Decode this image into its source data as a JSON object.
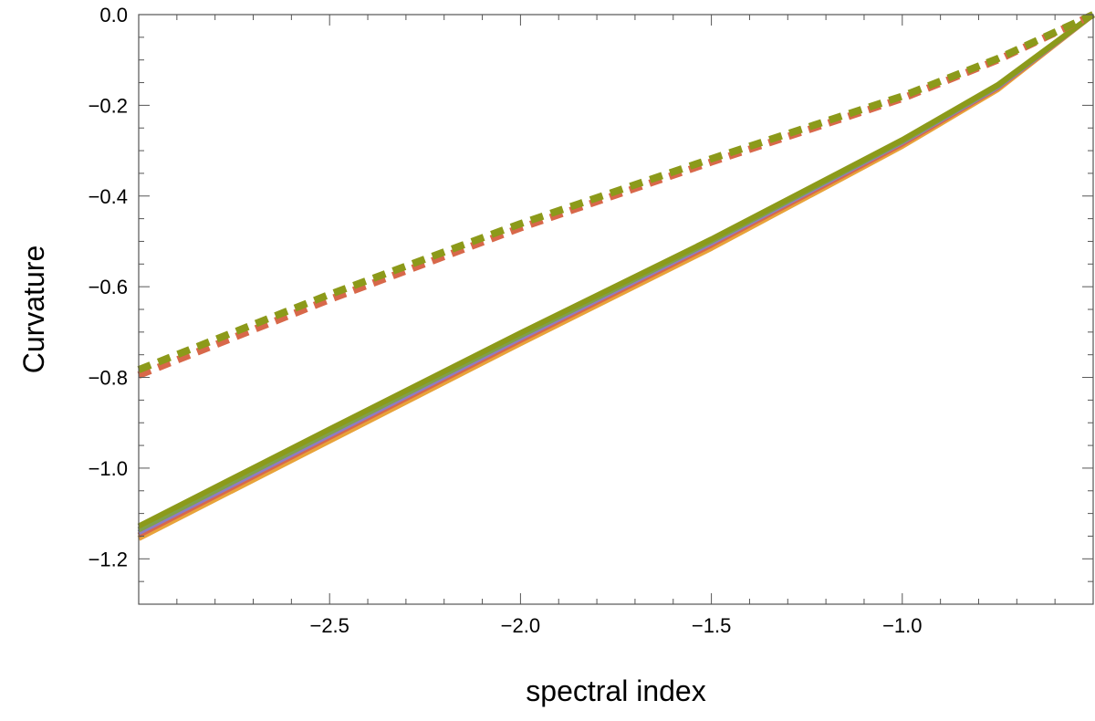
{
  "chart_data": {
    "type": "line",
    "xlabel": "spectral index",
    "ylabel": "Curvature",
    "xlim": [
      -3.0,
      -0.5
    ],
    "ylim": [
      -1.3,
      0.0
    ],
    "grid": false,
    "xticks": [
      {
        "value": -2.5,
        "label": "−2.5"
      },
      {
        "value": -2.0,
        "label": "−2.0"
      },
      {
        "value": -1.5,
        "label": "−1.5"
      },
      {
        "value": -1.0,
        "label": "−1.0"
      }
    ],
    "yticks": [
      {
        "value": 0.0,
        "label": "0.0"
      },
      {
        "value": -0.2,
        "label": "−0.2"
      },
      {
        "value": -0.4,
        "label": "−0.4"
      },
      {
        "value": -0.6,
        "label": "−0.6"
      },
      {
        "value": -0.8,
        "label": "−0.8"
      },
      {
        "value": -1.0,
        "label": "−1.0"
      },
      {
        "value": -1.2,
        "label": "−1.2"
      }
    ],
    "series": [
      {
        "style": "solid",
        "color": "#E8A33A",
        "x": [
          -3.0,
          -2.5,
          -2.0,
          -1.5,
          -1.0,
          -0.75,
          -0.5
        ],
        "y": [
          -1.155,
          -0.94,
          -0.725,
          -0.515,
          -0.29,
          -0.165,
          0.0
        ]
      },
      {
        "style": "solid",
        "color": "#D8684A",
        "x": [
          -3.0,
          -2.5,
          -2.0,
          -1.5,
          -1.0,
          -0.75,
          -0.5
        ],
        "y": [
          -1.148,
          -0.932,
          -0.718,
          -0.508,
          -0.285,
          -0.161,
          0.0
        ]
      },
      {
        "style": "solid",
        "color": "#8E7CC3",
        "x": [
          -3.0,
          -2.5,
          -2.0,
          -1.5,
          -1.0,
          -0.75,
          -0.5
        ],
        "y": [
          -1.142,
          -0.927,
          -0.713,
          -0.503,
          -0.281,
          -0.159,
          0.0
        ]
      },
      {
        "style": "solid",
        "color": "#7FA04A",
        "x": [
          -3.0,
          -2.5,
          -2.0,
          -1.5,
          -1.0,
          -0.75,
          -0.5
        ],
        "y": [
          -1.136,
          -0.921,
          -0.708,
          -0.499,
          -0.279,
          -0.157,
          0.0
        ]
      },
      {
        "style": "solid",
        "color": "#8C9A1A",
        "x": [
          -3.0,
          -2.5,
          -2.0,
          -1.5,
          -1.0,
          -0.75,
          -0.5
        ],
        "y": [
          -1.128,
          -0.914,
          -0.702,
          -0.495,
          -0.276,
          -0.155,
          0.0
        ]
      },
      {
        "style": "dashed",
        "color": "#D8684A",
        "x": [
          -3.0,
          -2.5,
          -2.0,
          -1.5,
          -1.0,
          -0.75,
          -0.5
        ],
        "y": [
          -0.795,
          -0.628,
          -0.47,
          -0.325,
          -0.185,
          -0.1,
          0.0
        ]
      },
      {
        "style": "dashed",
        "color": "#8C9A1A",
        "x": [
          -3.0,
          -2.5,
          -2.0,
          -1.5,
          -1.0,
          -0.75,
          -0.5
        ],
        "y": [
          -0.783,
          -0.617,
          -0.461,
          -0.318,
          -0.18,
          -0.097,
          0.0
        ]
      }
    ]
  }
}
